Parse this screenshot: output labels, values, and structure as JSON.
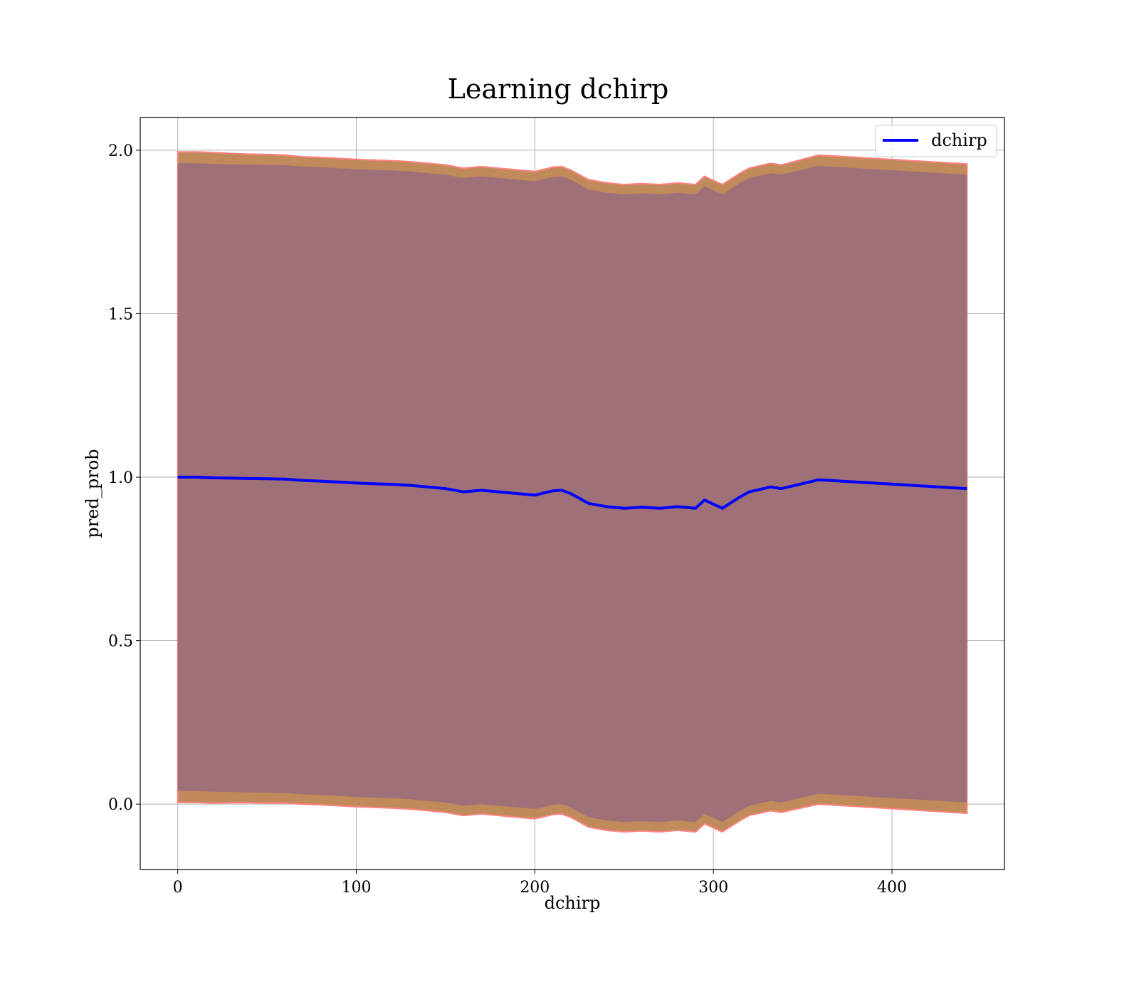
{
  "chart_data": {
    "type": "line",
    "title": "Learning dchirp",
    "xlabel": "dchirp",
    "ylabel": "pred_prob",
    "xlim": [
      -21,
      463
    ],
    "ylim": [
      -0.2,
      2.1
    ],
    "xticks": [
      0,
      100,
      200,
      300,
      400
    ],
    "xtick_labels": [
      "0",
      "100",
      "200",
      "300",
      "400"
    ],
    "yticks": [
      0.0,
      0.5,
      1.0,
      1.5,
      2.0
    ],
    "ytick_labels": [
      "0.0",
      "0.5",
      "1.0",
      "1.5",
      "2.0"
    ],
    "grid": true,
    "legend": {
      "position": "top-right",
      "entries": [
        "dchirp"
      ]
    },
    "colors": {
      "line": "#0000ff",
      "outer_band": "#c08a5a",
      "outer_band_edge": "#ff8080",
      "inner_band": "#a07078"
    },
    "series": [
      {
        "name": "dchirp",
        "x": [
          0,
          10,
          20,
          30,
          40,
          50,
          60,
          70,
          80,
          90,
          100,
          110,
          120,
          130,
          140,
          150,
          160,
          170,
          180,
          190,
          200,
          210,
          215,
          220,
          230,
          240,
          250,
          260,
          270,
          280,
          290,
          295,
          305,
          315,
          320,
          332,
          338,
          359,
          442
        ],
        "y": [
          1.0,
          1.0,
          0.998,
          0.997,
          0.996,
          0.995,
          0.994,
          0.99,
          0.988,
          0.985,
          0.982,
          0.98,
          0.978,
          0.975,
          0.97,
          0.965,
          0.955,
          0.96,
          0.955,
          0.95,
          0.945,
          0.958,
          0.96,
          0.95,
          0.92,
          0.91,
          0.905,
          0.908,
          0.905,
          0.91,
          0.905,
          0.93,
          0.905,
          0.94,
          0.955,
          0.97,
          0.965,
          0.992,
          0.965
        ]
      }
    ],
    "outer_band": {
      "upper": [
        1.995,
        1.995,
        1.993,
        1.99,
        1.988,
        1.987,
        1.985,
        1.98,
        1.978,
        1.975,
        1.972,
        1.97,
        1.968,
        1.965,
        1.96,
        1.955,
        1.945,
        1.95,
        1.945,
        1.94,
        1.935,
        1.948,
        1.95,
        1.94,
        1.91,
        1.9,
        1.895,
        1.898,
        1.895,
        1.9,
        1.895,
        1.92,
        1.895,
        1.93,
        1.945,
        1.96,
        1.955,
        1.985,
        1.958
      ],
      "lower": [
        0.005,
        0.005,
        0.003,
        0.004,
        0.004,
        0.003,
        0.003,
        0.0,
        -0.002,
        -0.005,
        -0.008,
        -0.01,
        -0.012,
        -0.015,
        -0.02,
        -0.025,
        -0.035,
        -0.03,
        -0.035,
        -0.04,
        -0.045,
        -0.032,
        -0.03,
        -0.04,
        -0.07,
        -0.08,
        -0.085,
        -0.082,
        -0.085,
        -0.08,
        -0.085,
        -0.06,
        -0.085,
        -0.05,
        -0.035,
        -0.02,
        -0.025,
        0.0,
        -0.028
      ]
    },
    "inner_band": {
      "upper": [
        1.96,
        1.96,
        1.958,
        1.957,
        1.956,
        1.955,
        1.954,
        1.95,
        1.948,
        1.945,
        1.942,
        1.94,
        1.938,
        1.935,
        1.93,
        1.925,
        1.915,
        1.92,
        1.915,
        1.91,
        1.905,
        1.918,
        1.92,
        1.91,
        1.88,
        1.87,
        1.865,
        1.868,
        1.865,
        1.87,
        1.865,
        1.89,
        1.865,
        1.9,
        1.915,
        1.93,
        1.925,
        1.952,
        1.925
      ],
      "lower": [
        0.04,
        0.04,
        0.038,
        0.037,
        0.036,
        0.035,
        0.034,
        0.03,
        0.028,
        0.025,
        0.022,
        0.02,
        0.018,
        0.015,
        0.01,
        0.005,
        -0.005,
        0.0,
        -0.005,
        -0.01,
        -0.015,
        -0.002,
        0.0,
        -0.01,
        -0.04,
        -0.05,
        -0.055,
        -0.052,
        -0.055,
        -0.05,
        -0.055,
        -0.03,
        -0.055,
        -0.02,
        -0.005,
        0.01,
        0.005,
        0.032,
        0.005
      ]
    }
  }
}
